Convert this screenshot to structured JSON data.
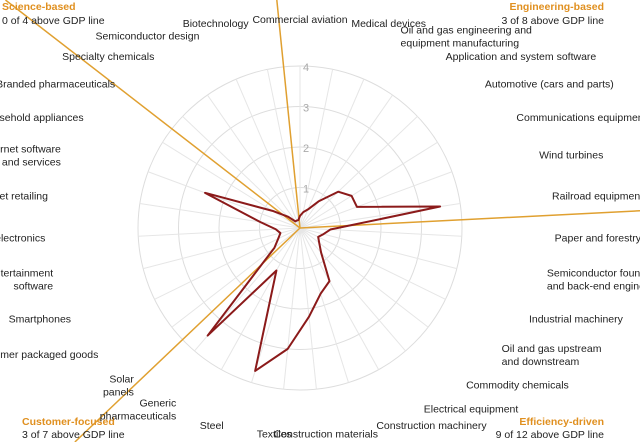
{
  "chart_data": {
    "type": "radar",
    "categories": [
      "Commercial aviation",
      "Medical devices",
      "Oil and gas engineering and\nequipment manufacturing",
      "Application and system software",
      "Automotive (cars and parts)",
      "Communications equipment",
      "Wind turbines",
      "Railroad equipment",
      "Paper and forestry",
      "Semiconductor foundry\nand back-end engineering",
      "Industrial machinery",
      "Oil and gas upstream\nand downstream",
      "Commodity chemicals",
      "Electrical equipment",
      "Construction machinery",
      "Construction materials",
      "Textiles",
      "Steel",
      "Generic\npharmaceuticals",
      "Solar\npanels",
      "Consumer packaged goods",
      "Smartphones",
      "Home entertainment\nsoftware",
      "Consumer electronics",
      "Internet retailing",
      "Internet software\nand services",
      "Household appliances",
      "Branded pharmaceuticals",
      "Specialty chemicals",
      "Semiconductor design",
      "Biotechnology"
    ],
    "values": [
      0.3,
      0.4,
      0.5,
      0.8,
      1.3,
      1.5,
      1.5,
      3.5,
      0.75,
      0.6,
      0.5,
      0.6,
      0.8,
      1.5,
      1.7,
      2.2,
      3.0,
      3.7,
      1.2,
      3.5,
      0.8,
      0.6,
      0.5,
      0.6,
      1.0,
      2.5,
      0.8,
      0.4,
      0.2,
      0.2,
      0.2
    ],
    "color": "#8b1a1a",
    "rlim": [
      0,
      4
    ],
    "rticks": [
      1,
      2,
      3,
      4
    ],
    "groups": [
      {
        "name": "Science-based",
        "note": "0 of 4 above GDP line"
      },
      {
        "name": "Engineering-based",
        "note": "3 of 8 above GDP line"
      },
      {
        "name": "Efficiency-driven",
        "note": "9 of 12 above GDP line"
      },
      {
        "name": "Customer-focused",
        "note": "3 of 7 above GDP line"
      }
    ],
    "group_color": "#e0a030"
  }
}
